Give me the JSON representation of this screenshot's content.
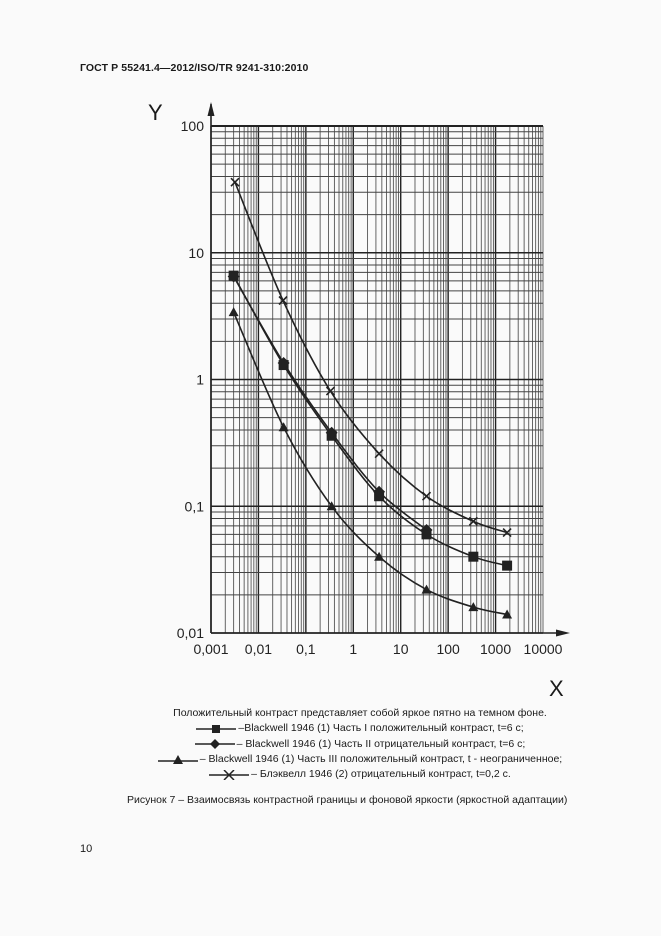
{
  "header": {
    "standard": "ГОСТ Р 55241.4—2012/ISO/TR 9241-310:2010"
  },
  "chart_data": {
    "type": "line",
    "title": "",
    "xlabel": "X",
    "ylabel": "Y",
    "xscale": "log",
    "yscale": "log",
    "xlim": [
      0.001,
      10000
    ],
    "ylim": [
      0.01,
      100
    ],
    "grid": true,
    "x_ticks": [
      "0,001",
      "0,01",
      "0,1",
      "1",
      "10",
      "100",
      "1000",
      "10000"
    ],
    "y_ticks": [
      "100",
      "10",
      "1",
      "0,1",
      "0,01"
    ],
    "series": [
      {
        "name": "Blackwell 1946 (1) Часть I положительный контраст, t=6 с",
        "marker": "square",
        "x": [
          0.003,
          0.034,
          0.35,
          3.5,
          35,
          340,
          1750
        ],
        "y": [
          6.6,
          1.3,
          0.36,
          0.12,
          0.06,
          0.04,
          0.034
        ]
      },
      {
        "name": "Blackwell 1946 (1) Часть II отрицательный контраст, t=6 с",
        "marker": "diamond",
        "x": [
          0.003,
          0.034,
          0.35,
          3.5,
          35
        ],
        "y": [
          6.5,
          1.35,
          0.38,
          0.13,
          0.065
        ]
      },
      {
        "name": "Blackwell 1946 (1) Часть III положительный контраст, t - неограниченное",
        "marker": "triangle",
        "x": [
          0.003,
          0.034,
          0.35,
          3.5,
          35,
          340,
          1750
        ],
        "y": [
          3.4,
          0.42,
          0.1,
          0.04,
          0.022,
          0.016,
          0.014
        ]
      },
      {
        "name": "Блэквелл 1946 (2) отрицательный контраст, t=0,2 с",
        "marker": "x",
        "x": [
          0.0032,
          0.033,
          0.33,
          3.5,
          35,
          340,
          1750
        ],
        "y": [
          36,
          4.2,
          0.81,
          0.26,
          0.12,
          0.076,
          0.062
        ]
      }
    ]
  },
  "legend": {
    "intro": "Положительный контраст представляет собой яркое пятно на темном фоне.",
    "items": [
      {
        "marker": "square",
        "text": "–Blackwell 1946 (1) Часть I положительный контраст, t=6 с;"
      },
      {
        "marker": "diamond",
        "text": "– Blackwell 1946 (1) Часть II отрицательный контраст, t=6 с;"
      },
      {
        "marker": "triangle",
        "text": "– Blackwell 1946 (1) Часть III положительный контраст, t - неограниченное;"
      },
      {
        "marker": "x",
        "text": "– Блэквелл 1946 (2) отрицательный контраст, t=0,2 с."
      }
    ]
  },
  "caption": "Рисунок 7 – Взаимосвязь контрастной границы и фоновой яркости (яркостной адаптации)",
  "page_number": "10"
}
